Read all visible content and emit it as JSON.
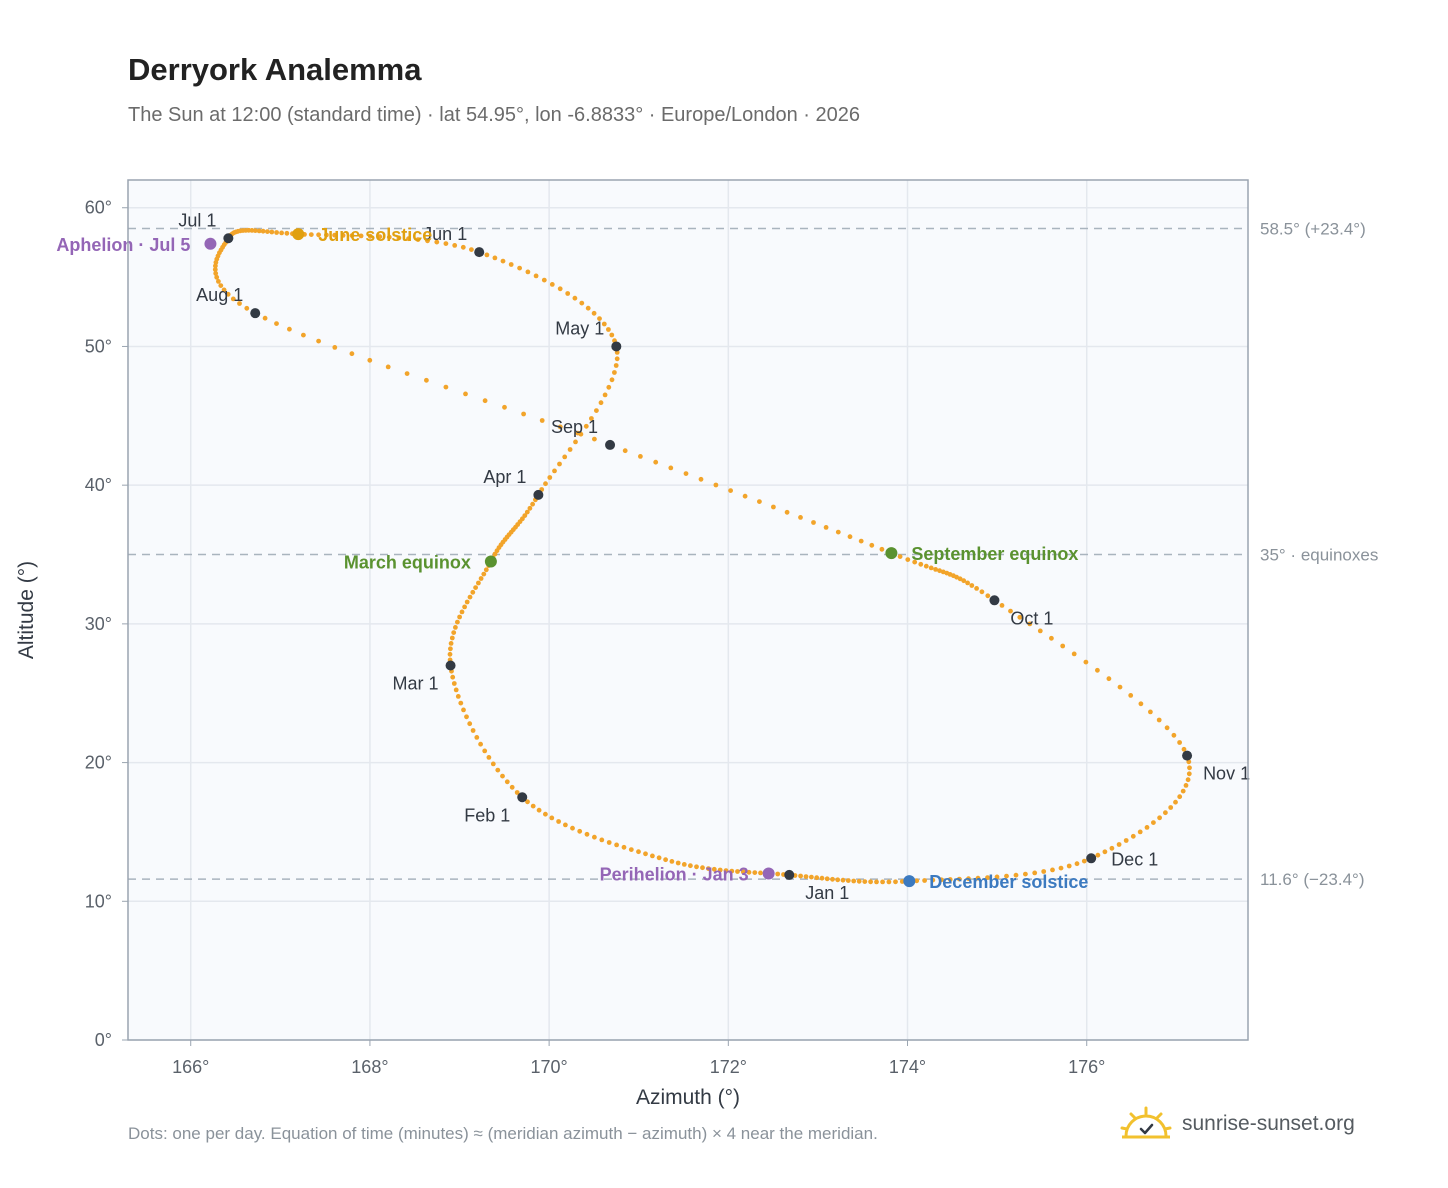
{
  "title": "Derryork Analemma",
  "subtitle": "The Sun at 12:00 (standard time) · lat 54.95°, lon -6.8833° · Europe/London · 2026",
  "footnote": "Dots: one per day. Equation of time (minutes) ≈ (meridian azimuth − azimuth) × 4 near the meridian.",
  "brand": {
    "name": "sunrise-sunset.org",
    "logo_icon": "sun-check-icon"
  },
  "colors": {
    "curve": "#F2A42A",
    "month": "#333a44",
    "solstice_june": "#E0A010",
    "solstice_december": "#3C7AC0",
    "equinox": "#5A9230",
    "apsis": "#9466B6",
    "reference_line": "#A9B4BE",
    "plot_bg": "#F8FAFD",
    "grid": "#E4E8EE"
  },
  "chart_data": {
    "type": "scatter",
    "xlabel": "Azimuth (°)",
    "ylabel": "Altitude (°)",
    "xlim": [
      165.3,
      177.8
    ],
    "ylim": [
      0,
      62
    ],
    "xticks": [
      166,
      168,
      170,
      172,
      174,
      176
    ],
    "yticks": [
      0,
      10,
      20,
      30,
      40,
      50,
      60
    ],
    "tick_suffix": "°",
    "grid": true,
    "curve_keypoints": [
      {
        "az": 172.68,
        "alt": 11.9
      },
      {
        "az": 171.3,
        "alt": 13.0
      },
      {
        "az": 169.7,
        "alt": 17.5
      },
      {
        "az": 168.9,
        "alt": 27.0
      },
      {
        "az": 169.35,
        "alt": 34.5
      },
      {
        "az": 169.88,
        "alt": 39.3
      },
      {
        "az": 170.75,
        "alt": 50.0
      },
      {
        "az": 169.22,
        "alt": 56.8
      },
      {
        "az": 167.2,
        "alt": 58.1
      },
      {
        "az": 166.42,
        "alt": 57.8
      },
      {
        "az": 166.72,
        "alt": 52.4
      },
      {
        "az": 170.68,
        "alt": 42.9
      },
      {
        "az": 173.82,
        "alt": 35.1
      },
      {
        "az": 174.97,
        "alt": 31.7
      },
      {
        "az": 177.12,
        "alt": 20.5
      },
      {
        "az": 176.05,
        "alt": 13.1
      },
      {
        "az": 174.02,
        "alt": 11.45
      },
      {
        "az": 172.68,
        "alt": 11.9
      }
    ],
    "month_points": [
      {
        "label": "Jan 1",
        "az": 172.68,
        "alt": 11.9,
        "pos": "below"
      },
      {
        "label": "Feb 1",
        "az": 169.7,
        "alt": 17.5,
        "pos": "below-left"
      },
      {
        "label": "Mar 1",
        "az": 168.9,
        "alt": 27.0,
        "pos": "below-left"
      },
      {
        "label": "Apr 1",
        "az": 169.88,
        "alt": 39.3,
        "pos": "above-left"
      },
      {
        "label": "May 1",
        "az": 170.75,
        "alt": 50.0,
        "pos": "above-left"
      },
      {
        "label": "Jun 1",
        "az": 169.22,
        "alt": 56.8,
        "pos": "above-left"
      },
      {
        "label": "Jul 1",
        "az": 166.42,
        "alt": 57.8,
        "pos": "above-left"
      },
      {
        "label": "Aug 1",
        "az": 166.72,
        "alt": 52.4,
        "pos": "above-left"
      },
      {
        "label": "Sep 1",
        "az": 170.68,
        "alt": 42.9,
        "pos": "above-left"
      },
      {
        "label": "Oct 1",
        "az": 174.97,
        "alt": 31.7,
        "pos": "below-right"
      },
      {
        "label": "Nov 1",
        "az": 177.12,
        "alt": 20.5,
        "pos": "below-right"
      },
      {
        "label": "Dec 1",
        "az": 176.05,
        "alt": 13.1,
        "pos": "right"
      }
    ],
    "events": [
      {
        "label": "June solstice",
        "az": 167.2,
        "alt": 58.1,
        "color": "#E0A010",
        "pos": "right"
      },
      {
        "label": "December solstice",
        "az": 174.02,
        "alt": 11.45,
        "color": "#3C7AC0",
        "pos": "right"
      },
      {
        "label": "March equinox",
        "az": 169.35,
        "alt": 34.5,
        "color": "#5A9230",
        "pos": "left"
      },
      {
        "label": "September equinox",
        "az": 173.82,
        "alt": 35.1,
        "color": "#5A9230",
        "pos": "right"
      },
      {
        "label": "Aphelion · Jul 5",
        "az": 166.22,
        "alt": 57.4,
        "color": "#9466B6",
        "pos": "left"
      },
      {
        "label": "Perihelion · Jan 3",
        "az": 172.45,
        "alt": 12.0,
        "color": "#9466B6",
        "pos": "left"
      }
    ],
    "reference_lines": [
      {
        "alt": 58.5,
        "label": "58.5° (+23.4°)"
      },
      {
        "alt": 35.0,
        "label": "35° · equinoxes"
      },
      {
        "alt": 11.6,
        "label": "11.6° (−23.4°)"
      }
    ]
  }
}
